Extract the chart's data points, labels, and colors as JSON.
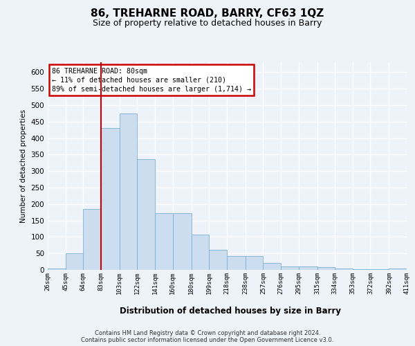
{
  "title": "86, TREHARNE ROAD, BARRY, CF63 1QZ",
  "subtitle": "Size of property relative to detached houses in Barry",
  "xlabel": "Distribution of detached houses by size in Barry",
  "ylabel": "Number of detached properties",
  "bar_color": "#ccddf0",
  "bar_edge_color": "#7aafd4",
  "vline_color": "#cc0000",
  "vline_x": 83,
  "annotation_text": "86 TREHARNE ROAD: 80sqm\n← 11% of detached houses are smaller (210)\n89% of semi-detached houses are larger (1,714) →",
  "annotation_box_color": "#ffffff",
  "annotation_box_edge": "#cc0000",
  "footer_text": "Contains HM Land Registry data © Crown copyright and database right 2024.\nContains public sector information licensed under the Open Government Licence v3.0.",
  "bin_edges": [
    26,
    45,
    64,
    83,
    103,
    122,
    141,
    160,
    180,
    199,
    218,
    238,
    257,
    276,
    295,
    315,
    334,
    353,
    372,
    392,
    411
  ],
  "bin_labels": [
    "26sqm",
    "45sqm",
    "64sqm",
    "83sqm",
    "103sqm",
    "122sqm",
    "141sqm",
    "160sqm",
    "180sqm",
    "199sqm",
    "218sqm",
    "238sqm",
    "257sqm",
    "276sqm",
    "295sqm",
    "315sqm",
    "334sqm",
    "353sqm",
    "372sqm",
    "392sqm",
    "411sqm"
  ],
  "bar_heights": [
    5,
    50,
    185,
    430,
    475,
    335,
    173,
    173,
    108,
    60,
    43,
    43,
    22,
    10,
    10,
    8,
    5,
    2,
    2,
    5
  ],
  "ylim": [
    0,
    630
  ],
  "yticks": [
    0,
    50,
    100,
    150,
    200,
    250,
    300,
    350,
    400,
    450,
    500,
    550,
    600
  ],
  "bg_color": "#eef2f9",
  "grid_color": "#ffffff",
  "title_fontsize": 11,
  "subtitle_fontsize": 9
}
